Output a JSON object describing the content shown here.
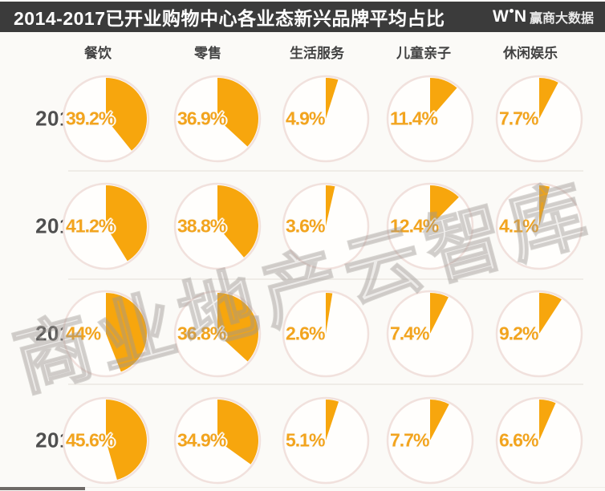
{
  "titlebar": {
    "title": "2014-2017已开业购物中心各业态新兴品牌平均占比",
    "logo": {
      "letter_w": "W",
      "letter_n": "N",
      "brand_text": "赢商大数据"
    }
  },
  "watermark_text": "商业地产云智库",
  "colors": {
    "accent_orange": "#F7A60D",
    "value_label_orange": "#F2A41E",
    "titlebar_bg": "#3B3B3B",
    "year_label": "#4F4F4F",
    "header_text": "#424242",
    "circle_ring": "#F1E1DD",
    "circle_fill": "#FFFEFC",
    "background": "#FBFAF7"
  },
  "chart_data": {
    "type": "pie",
    "title": "2014-2017已开业购物中心各业态新兴品牌平均占比",
    "unit": "%",
    "pie_style": "single orange slice on white circle, start at 12 o'clock, clockwise",
    "legend_position": "none",
    "categories": [
      "餐饮",
      "零售",
      "生活服务",
      "儿童亲子",
      "休闲娱乐"
    ],
    "rows": [
      {
        "year": "2014",
        "values": [
          39.2,
          36.9,
          4.9,
          11.4,
          7.7
        ],
        "labels": [
          "39.2%",
          "36.9%",
          "4.9%",
          "11.4%",
          "7.7%"
        ]
      },
      {
        "year": "2015",
        "values": [
          41.2,
          38.8,
          3.6,
          12.4,
          4.1
        ],
        "labels": [
          "41.2%",
          "38.8%",
          "3.6%",
          "12.4%",
          "4.1%"
        ]
      },
      {
        "year": "2016",
        "values": [
          44,
          36.8,
          2.6,
          7.4,
          9.2
        ],
        "labels": [
          "44%",
          "36.8%",
          "2.6%",
          "7.4%",
          "9.2%"
        ]
      },
      {
        "year": "2017",
        "values": [
          45.6,
          34.9,
          5.1,
          7.7,
          6.6
        ],
        "labels": [
          "45.6%",
          "34.9%",
          "5.1%",
          "7.7%",
          "6.6%"
        ]
      }
    ]
  }
}
